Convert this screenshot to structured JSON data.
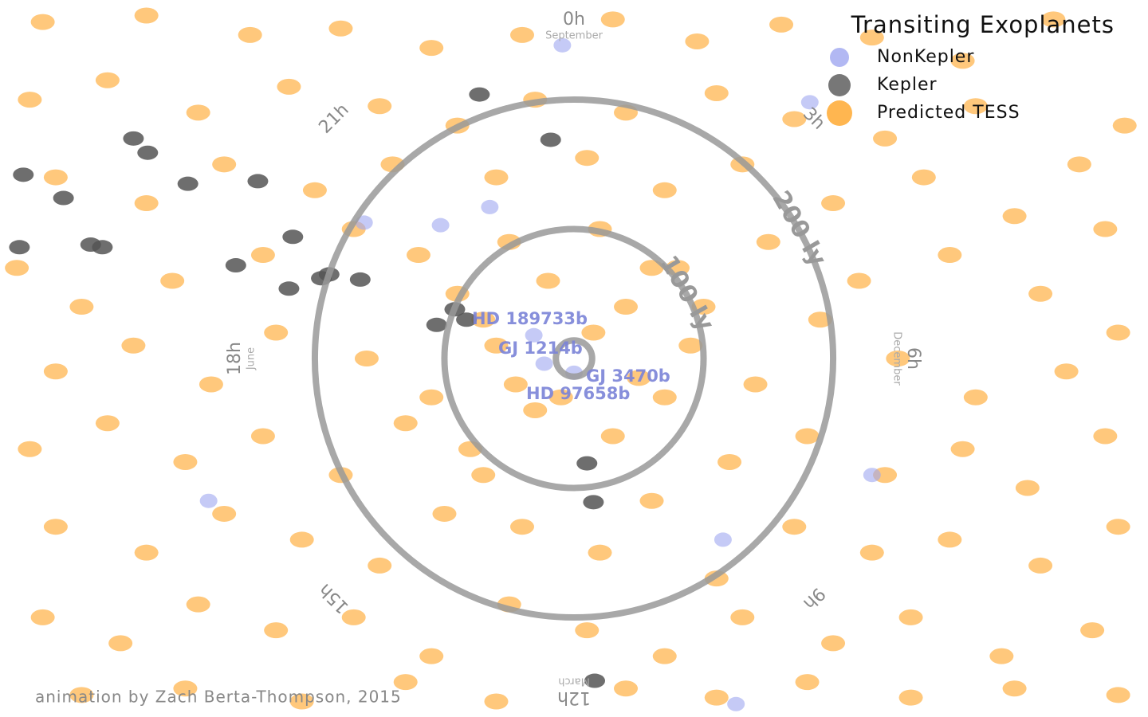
{
  "chart_data": {
    "type": "scatter",
    "title": "Transiting Exoplanets",
    "credit": "animation by Zach Berta-Thompson, 2015",
    "legend": "upper right",
    "xlim": [
      -443,
      443
    ],
    "ylim": [
      -277,
      277
    ],
    "ring_values": [
      14,
      100,
      200
    ],
    "ring_labels": [
      null,
      "100 ly",
      "200 ly"
    ],
    "ring_color": "#999999",
    "hour_labels": [
      "0h",
      "3h",
      "6h",
      "9h",
      "12h",
      "15h",
      "18h",
      "21h"
    ],
    "month_labels": [
      "September",
      "December",
      "March",
      "June"
    ],
    "annotations": [
      "HD 189733b",
      "GJ 1214b",
      "GJ 3470b",
      "HD 97658b"
    ],
    "series": [
      {
        "name": "NonKepler",
        "color": "#9fa6f0",
        "x": [
          -9,
          182,
          -65,
          -162,
          -103,
          -31,
          0,
          -23,
          230,
          115,
          -282,
          125
        ],
        "y": [
          242,
          198,
          117,
          105,
          103,
          18,
          -11,
          -4,
          -90,
          -140,
          -110,
          -267
        ]
      },
      {
        "name": "Kepler",
        "color": "#555555",
        "x": [
          -73,
          -18,
          -340,
          -329,
          -425,
          -298,
          -244,
          -394,
          -373,
          -428,
          -364,
          -217,
          -261,
          -220,
          -189,
          -165,
          -195,
          -92,
          -83,
          -106,
          10,
          15,
          16
        ],
        "y": [
          204,
          169,
          170,
          159,
          142,
          135,
          137,
          124,
          88,
          86,
          86,
          94,
          72,
          54,
          65,
          61,
          62,
          38,
          30,
          26,
          -81,
          -111,
          -249
        ]
      },
      {
        "name": "Predicted TESS",
        "color": "#ffa424",
        "x": [
          -410,
          -330,
          -250,
          -180,
          -110,
          -40,
          30,
          95,
          160,
          230,
          300,
          370,
          425,
          -420,
          -360,
          -290,
          -220,
          -150,
          -90,
          -30,
          40,
          110,
          170,
          240,
          310,
          390,
          -400,
          -330,
          -270,
          -200,
          -140,
          -60,
          10,
          70,
          130,
          200,
          270,
          340,
          410,
          -430,
          -380,
          -310,
          -240,
          -170,
          -120,
          -50,
          20,
          80,
          150,
          220,
          290,
          360,
          420,
          -400,
          -340,
          -280,
          -230,
          -160,
          -110,
          -70,
          -20,
          40,
          90,
          140,
          190,
          250,
          310,
          380,
          -420,
          -360,
          -300,
          -240,
          -180,
          -130,
          -80,
          -30,
          30,
          70,
          120,
          180,
          240,
          300,
          350,
          410,
          -400,
          -330,
          -270,
          -210,
          -150,
          -100,
          -40,
          20,
          60,
          110,
          170,
          230,
          290,
          360,
          420,
          -410,
          -350,
          -290,
          -230,
          -170,
          -110,
          -50,
          10,
          70,
          130,
          200,
          260,
          330,
          400,
          -380,
          -300,
          -210,
          -130,
          -60,
          40,
          110,
          180,
          260,
          340,
          420,
          -60,
          -45,
          15,
          -10,
          50,
          -90,
          100,
          -70,
          60
        ],
        "y": [
          260,
          265,
          250,
          255,
          240,
          250,
          262,
          245,
          258,
          248,
          230,
          262,
          180,
          200,
          215,
          190,
          210,
          195,
          180,
          200,
          190,
          205,
          185,
          170,
          195,
          150,
          140,
          120,
          150,
          130,
          150,
          140,
          155,
          130,
          150,
          120,
          140,
          110,
          100,
          70,
          40,
          60,
          80,
          100,
          80,
          90,
          100,
          70,
          90,
          60,
          80,
          50,
          20,
          -10,
          10,
          -20,
          20,
          0,
          -30,
          30,
          60,
          40,
          10,
          -20,
          30,
          0,
          -30,
          -10,
          -70,
          -50,
          -80,
          -60,
          -90,
          -50,
          -70,
          -40,
          -60,
          -30,
          -80,
          -60,
          -90,
          -70,
          -100,
          -60,
          -130,
          -150,
          -120,
          -140,
          -160,
          -120,
          -130,
          -150,
          -110,
          -170,
          -130,
          -150,
          -140,
          -160,
          -130,
          -200,
          -220,
          -190,
          -210,
          -200,
          -230,
          -190,
          -210,
          -230,
          -200,
          -220,
          -200,
          -230,
          -210,
          -260,
          -255,
          -265,
          -250,
          -265,
          -255,
          -262,
          -250,
          -262,
          -255,
          -260,
          10,
          -20,
          20,
          -30,
          -15,
          50,
          40,
          -90,
          70
        ]
      }
    ]
  }
}
